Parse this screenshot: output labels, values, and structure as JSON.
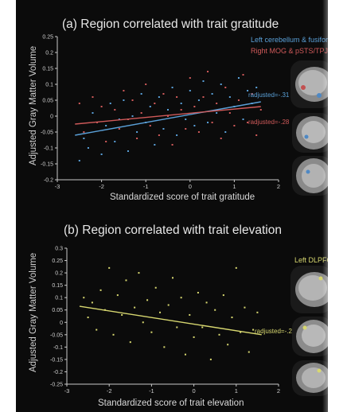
{
  "chart_data": [
    {
      "type": "scatter",
      "title": "(a) Region correlated with trait gratitude",
      "xlabel": "Standardized score of trait gratitude",
      "ylabel": "Adjusted Gray Matter Volume",
      "xlim": [
        -3,
        2
      ],
      "ylim": [
        -0.2,
        0.25
      ],
      "xticks": [
        "-3",
        "-2",
        "-1",
        "0",
        "1",
        "2"
      ],
      "yticks": [
        "0.25",
        "0.2",
        "0.15",
        "0.1",
        "0.05",
        "0",
        "-0.05",
        "-0.1",
        "-0.15",
        "-0.2"
      ],
      "grid": false,
      "legend": "top-right",
      "series": [
        {
          "name": "Left cerebellum & fusiform",
          "color": "#5aa0d8",
          "fit": {
            "x": [
              -2.6,
              1.6
            ],
            "y": [
              -0.06,
              0.045
            ]
          },
          "annotation": "radjusted=-.31",
          "points": [
            [
              -2.5,
              -0.14
            ],
            [
              -2.4,
              -0.07
            ],
            [
              -2.3,
              -0.1
            ],
            [
              -2.2,
              0.01
            ],
            [
              -2.0,
              -0.12
            ],
            [
              -1.9,
              -0.03
            ],
            [
              -1.8,
              0.04
            ],
            [
              -1.7,
              -0.08
            ],
            [
              -1.6,
              -0.01
            ],
            [
              -1.5,
              0.05
            ],
            [
              -1.4,
              -0.11
            ],
            [
              -1.3,
              0.0
            ],
            [
              -1.2,
              -0.05
            ],
            [
              -1.1,
              0.07
            ],
            [
              -1.0,
              -0.02
            ],
            [
              -0.9,
              0.03
            ],
            [
              -0.8,
              -0.09
            ],
            [
              -0.7,
              0.06
            ],
            [
              -0.6,
              -0.04
            ],
            [
              -0.5,
              0.02
            ],
            [
              -0.4,
              0.09
            ],
            [
              -0.3,
              -0.06
            ],
            [
              -0.2,
              0.04
            ],
            [
              -0.1,
              -0.01
            ],
            [
              0.0,
              0.08
            ],
            [
              0.1,
              -0.03
            ],
            [
              0.2,
              0.05
            ],
            [
              0.3,
              0.11
            ],
            [
              0.4,
              -0.02
            ],
            [
              0.5,
              0.07
            ],
            [
              0.6,
              0.01
            ],
            [
              0.7,
              0.1
            ],
            [
              0.8,
              -0.05
            ],
            [
              0.9,
              0.06
            ],
            [
              1.0,
              0.03
            ],
            [
              1.1,
              0.12
            ],
            [
              1.2,
              -0.01
            ],
            [
              1.3,
              0.08
            ],
            [
              1.4,
              0.04
            ],
            [
              1.5,
              0.09
            ]
          ]
        },
        {
          "name": "Right MOG & pSTS/TPJ",
          "color": "#d05a5a",
          "fit": {
            "x": [
              -2.6,
              1.6
            ],
            "y": [
              -0.025,
              0.03
            ]
          },
          "annotation": "radjusted=-.28",
          "points": [
            [
              -2.5,
              0.04
            ],
            [
              -2.4,
              -0.05
            ],
            [
              -2.2,
              0.06
            ],
            [
              -2.1,
              -0.02
            ],
            [
              -2.0,
              0.03
            ],
            [
              -1.9,
              -0.08
            ],
            [
              -1.7,
              0.02
            ],
            [
              -1.6,
              -0.04
            ],
            [
              -1.5,
              0.08
            ],
            [
              -1.4,
              -0.01
            ],
            [
              -1.3,
              0.05
            ],
            [
              -1.2,
              -0.07
            ],
            [
              -1.1,
              0.01
            ],
            [
              -1.0,
              0.1
            ],
            [
              -0.9,
              -0.03
            ],
            [
              -0.8,
              0.04
            ],
            [
              -0.7,
              -0.06
            ],
            [
              -0.6,
              0.07
            ],
            [
              -0.5,
              0.0
            ],
            [
              -0.4,
              -0.09
            ],
            [
              -0.3,
              0.06
            ],
            [
              -0.2,
              0.02
            ],
            [
              -0.1,
              -0.04
            ],
            [
              0.0,
              0.12
            ],
            [
              0.1,
              0.03
            ],
            [
              0.2,
              -0.05
            ],
            [
              0.3,
              0.06
            ],
            [
              0.4,
              0.14
            ],
            [
              0.5,
              -0.02
            ],
            [
              0.6,
              0.04
            ],
            [
              0.7,
              -0.07
            ],
            [
              0.8,
              0.09
            ],
            [
              0.9,
              0.01
            ],
            [
              1.0,
              -0.03
            ],
            [
              1.1,
              0.05
            ],
            [
              1.2,
              0.13
            ],
            [
              1.3,
              -0.02
            ],
            [
              1.4,
              0.07
            ],
            [
              1.5,
              -0.06
            ],
            [
              1.6,
              0.02
            ]
          ]
        }
      ]
    },
    {
      "type": "scatter",
      "title": "(b) Region correlated with trait elevation",
      "xlabel": "Standardized score of trait elevation",
      "ylabel": "Adjusted Gray Matter Volume",
      "xlim": [
        -3,
        2
      ],
      "ylim": [
        -0.25,
        0.3
      ],
      "xticks": [
        "-3",
        "-2",
        "-1",
        "0",
        "1",
        "2"
      ],
      "yticks": [
        "0.3",
        "0.25",
        "0.2",
        "0.15",
        "0.1",
        "0.05",
        "0",
        "-0.05",
        "-0.1",
        "-0.15",
        "-0.2",
        "-0.25"
      ],
      "grid": false,
      "legend": "top-right",
      "series": [
        {
          "name": "Left DLPFC",
          "color": "#d8d870",
          "fit": {
            "x": [
              -2.7,
              1.6
            ],
            "y": [
              0.065,
              -0.05
            ]
          },
          "annotation": "radjusted=-.29",
          "points": [
            [
              -2.6,
              0.1
            ],
            [
              -2.5,
              0.02
            ],
            [
              -2.4,
              0.08
            ],
            [
              -2.3,
              -0.03
            ],
            [
              -2.2,
              0.13
            ],
            [
              -2.1,
              0.05
            ],
            [
              -2.0,
              0.22
            ],
            [
              -1.9,
              -0.05
            ],
            [
              -1.8,
              0.11
            ],
            [
              -1.7,
              0.03
            ],
            [
              -1.6,
              0.17
            ],
            [
              -1.5,
              -0.08
            ],
            [
              -1.4,
              0.06
            ],
            [
              -1.3,
              0.2
            ],
            [
              -1.2,
              0.0
            ],
            [
              -1.1,
              0.09
            ],
            [
              -1.0,
              -0.04
            ],
            [
              -0.9,
              0.14
            ],
            [
              -0.8,
              0.04
            ],
            [
              -0.7,
              -0.1
            ],
            [
              -0.6,
              0.07
            ],
            [
              -0.5,
              0.18
            ],
            [
              -0.4,
              -0.02
            ],
            [
              -0.3,
              0.1
            ],
            [
              -0.2,
              -0.13
            ],
            [
              -0.1,
              0.03
            ],
            [
              0.0,
              -0.06
            ],
            [
              0.1,
              0.12
            ],
            [
              0.2,
              -0.02
            ],
            [
              0.3,
              0.08
            ],
            [
              0.4,
              -0.15
            ],
            [
              0.5,
              0.05
            ],
            [
              0.6,
              -0.05
            ],
            [
              0.7,
              0.11
            ],
            [
              0.8,
              -0.09
            ],
            [
              0.9,
              0.02
            ],
            [
              1.0,
              0.22
            ],
            [
              1.1,
              -0.04
            ],
            [
              1.2,
              0.06
            ],
            [
              1.3,
              -0.12
            ],
            [
              1.4,
              -0.03
            ],
            [
              1.5,
              0.04
            ]
          ]
        }
      ]
    }
  ],
  "colors": {
    "background": "#0b0b0b",
    "axis": "#c8c8c8",
    "gratitude_blue": "#5aa0d8",
    "gratitude_red": "#d05a5a",
    "elevation_yellow": "#d8d870"
  }
}
